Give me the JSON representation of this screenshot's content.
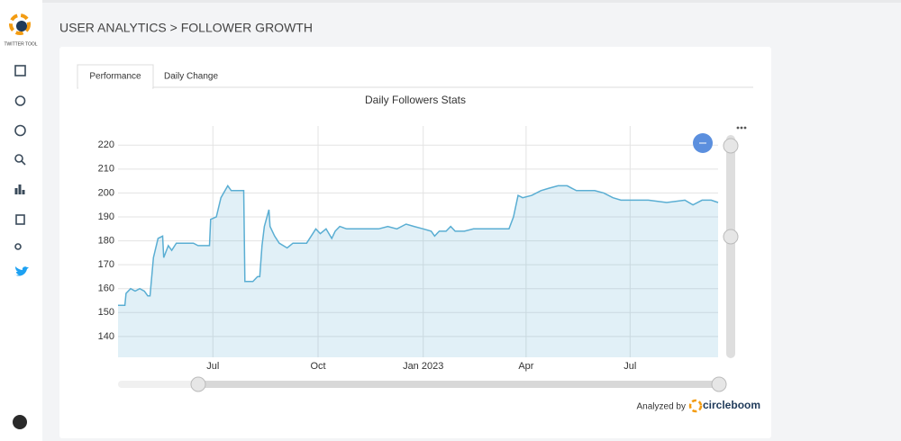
{
  "sidebar": {
    "brand": "TWITTER TOOL"
  },
  "header": {
    "title": "USER ANALYTICS > FOLLOWER GROWTH"
  },
  "tabs": [
    "Performance",
    "Daily Change"
  ],
  "chart_data": {
    "type": "line",
    "title": "Daily Followers Stats",
    "x": [
      -83,
      -77,
      -76,
      -72,
      -68,
      -64,
      -60,
      -57,
      -55,
      -52,
      -48,
      -44,
      -43,
      -39,
      -36,
      -32,
      -24,
      -17,
      -13,
      -6,
      -3,
      -2,
      3,
      7,
      13,
      16,
      23,
      27,
      28,
      35,
      39,
      41,
      43,
      45,
      49,
      50,
      54,
      58,
      65,
      70,
      78,
      82,
      86,
      90,
      94,
      99,
      104,
      107,
      111,
      117,
      129,
      145,
      153,
      161,
      169,
      176,
      184,
      191,
      194,
      198,
      204,
      208,
      212,
      220,
      228,
      239,
      255,
      259,
      263,
      267,
      271,
      279,
      287,
      294,
      302,
      310,
      318,
      334,
      342,
      350,
      357,
      365,
      381,
      397,
      413,
      420,
      428,
      436,
      442
    ],
    "values": [
      153,
      153,
      158,
      160,
      159,
      160,
      159,
      157,
      157,
      173,
      181,
      182,
      173,
      178,
      176,
      179,
      179,
      179,
      178,
      178,
      178,
      189,
      190,
      198,
      203,
      201,
      201,
      201,
      163,
      163,
      165,
      165,
      178,
      186,
      193,
      186,
      182,
      179,
      177,
      179,
      179,
      179,
      182,
      185,
      183,
      185,
      181,
      184,
      186,
      185,
      185,
      185,
      186,
      185,
      187,
      186,
      185,
      184,
      182,
      184,
      184,
      186,
      184,
      184,
      185,
      185,
      185,
      185,
      190,
      199,
      198,
      199,
      201,
      202,
      203,
      203,
      201,
      201,
      200,
      198,
      197,
      197,
      197,
      196,
      197,
      195,
      197,
      197,
      196
    ],
    "color": "#5aaed3",
    "xlim": [
      -83,
      442
    ],
    "xticks": [
      {
        "value": 0,
        "label": "Jul"
      },
      {
        "value": 92,
        "label": "Oct"
      },
      {
        "value": 184,
        "label": "Jan 2023"
      },
      {
        "value": 274,
        "label": "Apr"
      },
      {
        "value": 365,
        "label": "Jul"
      }
    ],
    "ylim": [
      131.3,
      228
    ],
    "yticks": [
      140,
      150,
      160,
      170,
      180,
      190,
      200,
      210,
      220
    ],
    "grid": true
  },
  "footer": {
    "analyzed_by": "Analyzed by",
    "brand": "circleboom"
  }
}
